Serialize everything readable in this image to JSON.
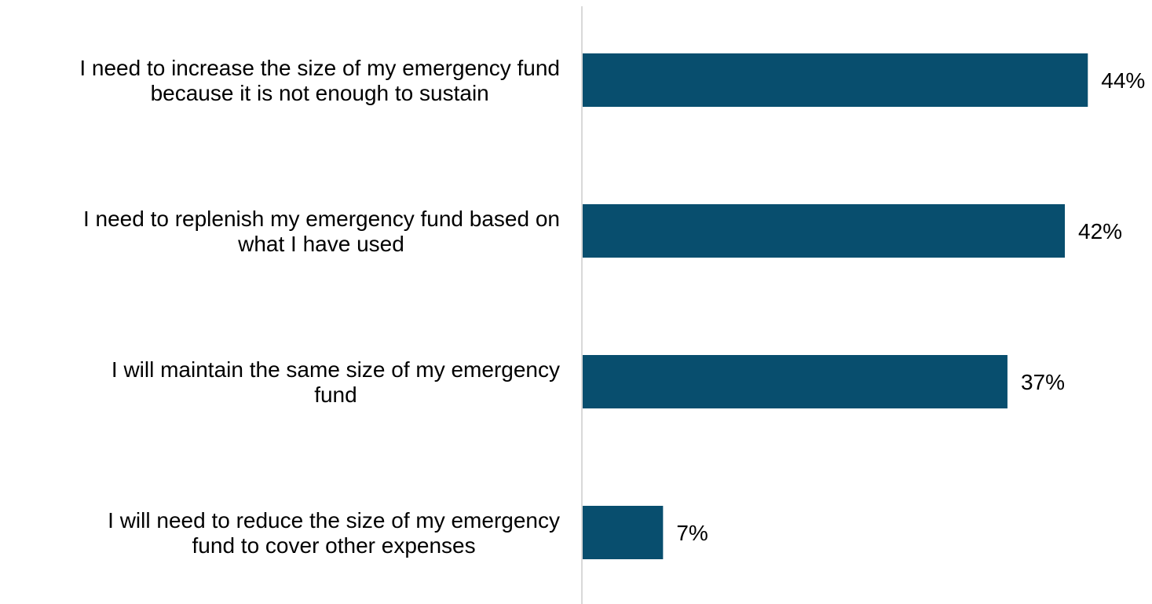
{
  "chart_data": {
    "type": "bar",
    "orientation": "horizontal",
    "categories": [
      [
        "I need to increase the size of my emergency fund",
        "because it is not enough to sustain"
      ],
      [
        "I need to replenish my emergency fund based on",
        "what I have used"
      ],
      [
        "I will maintain the same size of my emergency",
        "fund"
      ],
      [
        "I will need to reduce the size of my emergency",
        "fund to cover other expenses"
      ]
    ],
    "values": [
      44,
      42,
      37,
      7
    ],
    "data_labels": [
      "44%",
      "42%",
      "37%",
      "7%"
    ],
    "xlim": [
      0,
      50
    ],
    "grid": false,
    "legend": "none",
    "title": "",
    "xlabel": "",
    "ylabel": "",
    "colors": {
      "bar": "#084e6e",
      "axis": "#d9d9d9",
      "text": "#000000"
    }
  }
}
